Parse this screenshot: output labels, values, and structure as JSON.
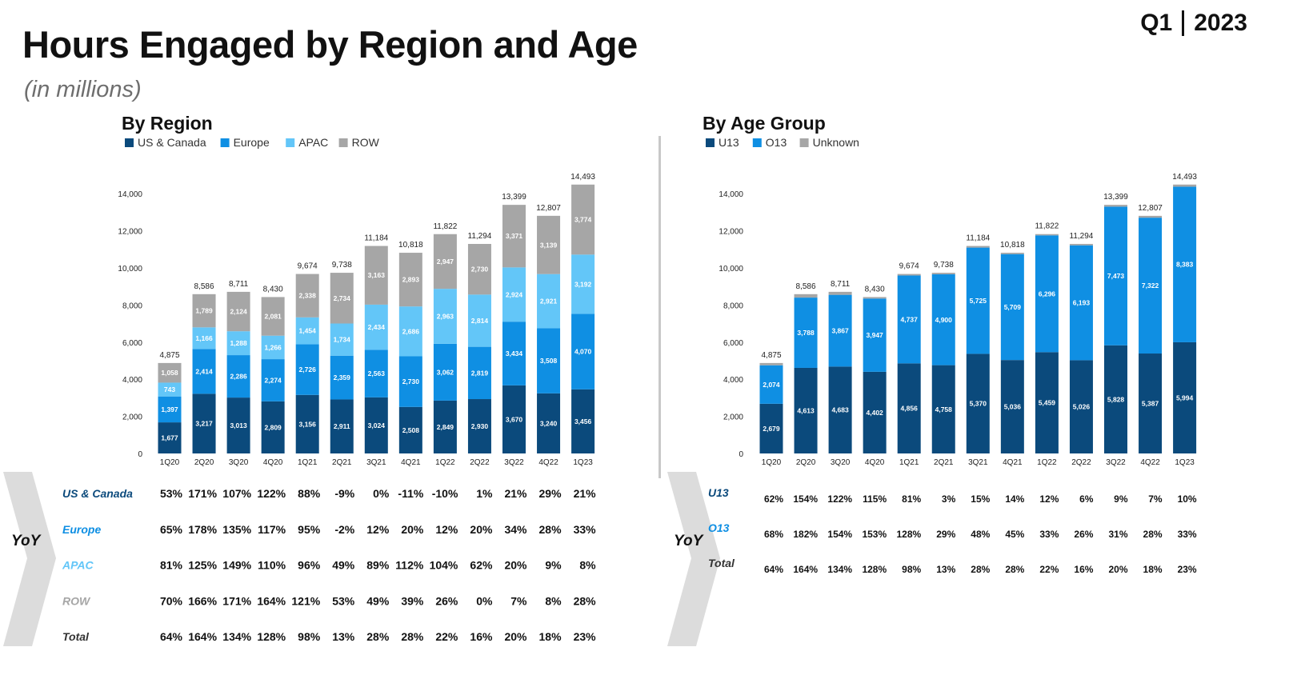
{
  "header": {
    "title": "Hours Engaged by Region and Age",
    "subtitle": "(in millions)",
    "quarter": "Q1",
    "year": "2023"
  },
  "colors": {
    "us_canada": "#0b4a7c",
    "europe": "#0f8fe3",
    "apac": "#63c6f8",
    "row": "#a6a6a6",
    "u13": "#0b4a7c",
    "o13": "#0f8fe3",
    "unknown": "#a6a6a6",
    "chevron": "#dcdcdc"
  },
  "chart_data": [
    {
      "type": "bar",
      "stacked": true,
      "title": "By Region",
      "categories": [
        "1Q20",
        "2Q20",
        "3Q20",
        "4Q20",
        "1Q21",
        "2Q21",
        "3Q21",
        "4Q21",
        "1Q22",
        "2Q22",
        "3Q22",
        "4Q22",
        "1Q23"
      ],
      "series": [
        {
          "name": "US & Canada",
          "values": [
            1677,
            3217,
            3013,
            2809,
            3156,
            2911,
            3024,
            2508,
            2849,
            2930,
            3670,
            3240,
            3456
          ]
        },
        {
          "name": "Europe",
          "values": [
            1397,
            2414,
            2286,
            2274,
            2726,
            2359,
            2563,
            2730,
            3062,
            2819,
            3434,
            3508,
            4070
          ]
        },
        {
          "name": "APAC",
          "values": [
            743,
            1166,
            1288,
            1266,
            1454,
            1734,
            2434,
            2686,
            2963,
            2814,
            2924,
            2921,
            3192
          ]
        },
        {
          "name": "ROW",
          "values": [
            1058,
            1789,
            2124,
            2081,
            2338,
            2734,
            3163,
            2893,
            2947,
            2730,
            3371,
            3139,
            3774
          ]
        }
      ],
      "totals": [
        "4,875",
        "8,586",
        "8,711",
        "8,430",
        "9,674",
        "9,738",
        "11,184",
        "10,818",
        "11,822",
        "11,294",
        "13,399",
        "12,807",
        "14,493"
      ],
      "yticks": [
        "0",
        "2,000",
        "4,000",
        "6,000",
        "8,000",
        "10,000",
        "12,000",
        "14,000"
      ],
      "ylim": [
        0,
        14000
      ],
      "legend": "top-left",
      "grid": false
    },
    {
      "type": "bar",
      "stacked": true,
      "title": "By Age Group",
      "categories": [
        "1Q20",
        "2Q20",
        "3Q20",
        "4Q20",
        "1Q21",
        "2Q21",
        "3Q21",
        "4Q21",
        "1Q22",
        "2Q22",
        "3Q22",
        "4Q22",
        "1Q23"
      ],
      "series": [
        {
          "name": "U13",
          "values": [
            2679,
            4613,
            4683,
            4402,
            4856,
            4758,
            5370,
            5036,
            5459,
            5026,
            5828,
            5387,
            5994
          ]
        },
        {
          "name": "O13",
          "values": [
            2074,
            3788,
            3867,
            3947,
            4737,
            4900,
            5725,
            5709,
            6296,
            6193,
            7473,
            7322,
            8383
          ]
        },
        {
          "name": "Unknown",
          "values": [
            122,
            185,
            161,
            81,
            81,
            80,
            89,
            73,
            67,
            75,
            98,
            98,
            116
          ]
        }
      ],
      "labeled_series": [
        0,
        1
      ],
      "totals": [
        "4,875",
        "8,586",
        "8,711",
        "8,430",
        "9,674",
        "9,738",
        "11,184",
        "10,818",
        "11,822",
        "11,294",
        "13,399",
        "12,807",
        "14,493"
      ],
      "yticks": [
        "0",
        "2,000",
        "4,000",
        "6,000",
        "8,000",
        "10,000",
        "12,000",
        "14,000"
      ],
      "ylim": [
        0,
        14000
      ],
      "legend": "top-left",
      "grid": false
    }
  ],
  "yoy_region": {
    "label": "YoY",
    "rows": [
      {
        "name": "US & Canada",
        "color": "#0b4a7c",
        "values": [
          "53%",
          "171%",
          "107%",
          "122%",
          "88%",
          "-9%",
          "0%",
          "-11%",
          "-10%",
          "1%",
          "21%",
          "29%",
          "21%"
        ]
      },
      {
        "name": "Europe",
        "color": "#0f8fe3",
        "values": [
          "65%",
          "178%",
          "135%",
          "117%",
          "95%",
          "-2%",
          "12%",
          "20%",
          "12%",
          "20%",
          "34%",
          "28%",
          "33%"
        ]
      },
      {
        "name": "APAC",
        "color": "#63c6f8",
        "values": [
          "81%",
          "125%",
          "149%",
          "110%",
          "96%",
          "49%",
          "89%",
          "112%",
          "104%",
          "62%",
          "20%",
          "9%",
          "8%"
        ]
      },
      {
        "name": "ROW",
        "color": "#a6a6a6",
        "values": [
          "70%",
          "166%",
          "171%",
          "164%",
          "121%",
          "53%",
          "49%",
          "39%",
          "26%",
          "0%",
          "7%",
          "8%",
          "28%"
        ]
      },
      {
        "name": "Total",
        "color": "#333333",
        "values": [
          "64%",
          "164%",
          "134%",
          "128%",
          "98%",
          "13%",
          "28%",
          "28%",
          "22%",
          "16%",
          "20%",
          "18%",
          "23%"
        ]
      }
    ]
  },
  "yoy_age": {
    "label": "YoY",
    "rows": [
      {
        "name": "U13",
        "color": "#0b4a7c",
        "values": [
          "62%",
          "154%",
          "122%",
          "115%",
          "81%",
          "3%",
          "15%",
          "14%",
          "12%",
          "6%",
          "9%",
          "7%",
          "10%"
        ]
      },
      {
        "name": "O13",
        "color": "#0f8fe3",
        "values": [
          "68%",
          "182%",
          "154%",
          "153%",
          "128%",
          "29%",
          "48%",
          "45%",
          "33%",
          "26%",
          "31%",
          "28%",
          "33%"
        ]
      },
      {
        "name": "Total",
        "color": "#333333",
        "values": [
          "64%",
          "164%",
          "134%",
          "128%",
          "98%",
          "13%",
          "28%",
          "28%",
          "22%",
          "16%",
          "20%",
          "18%",
          "23%"
        ]
      }
    ]
  }
}
